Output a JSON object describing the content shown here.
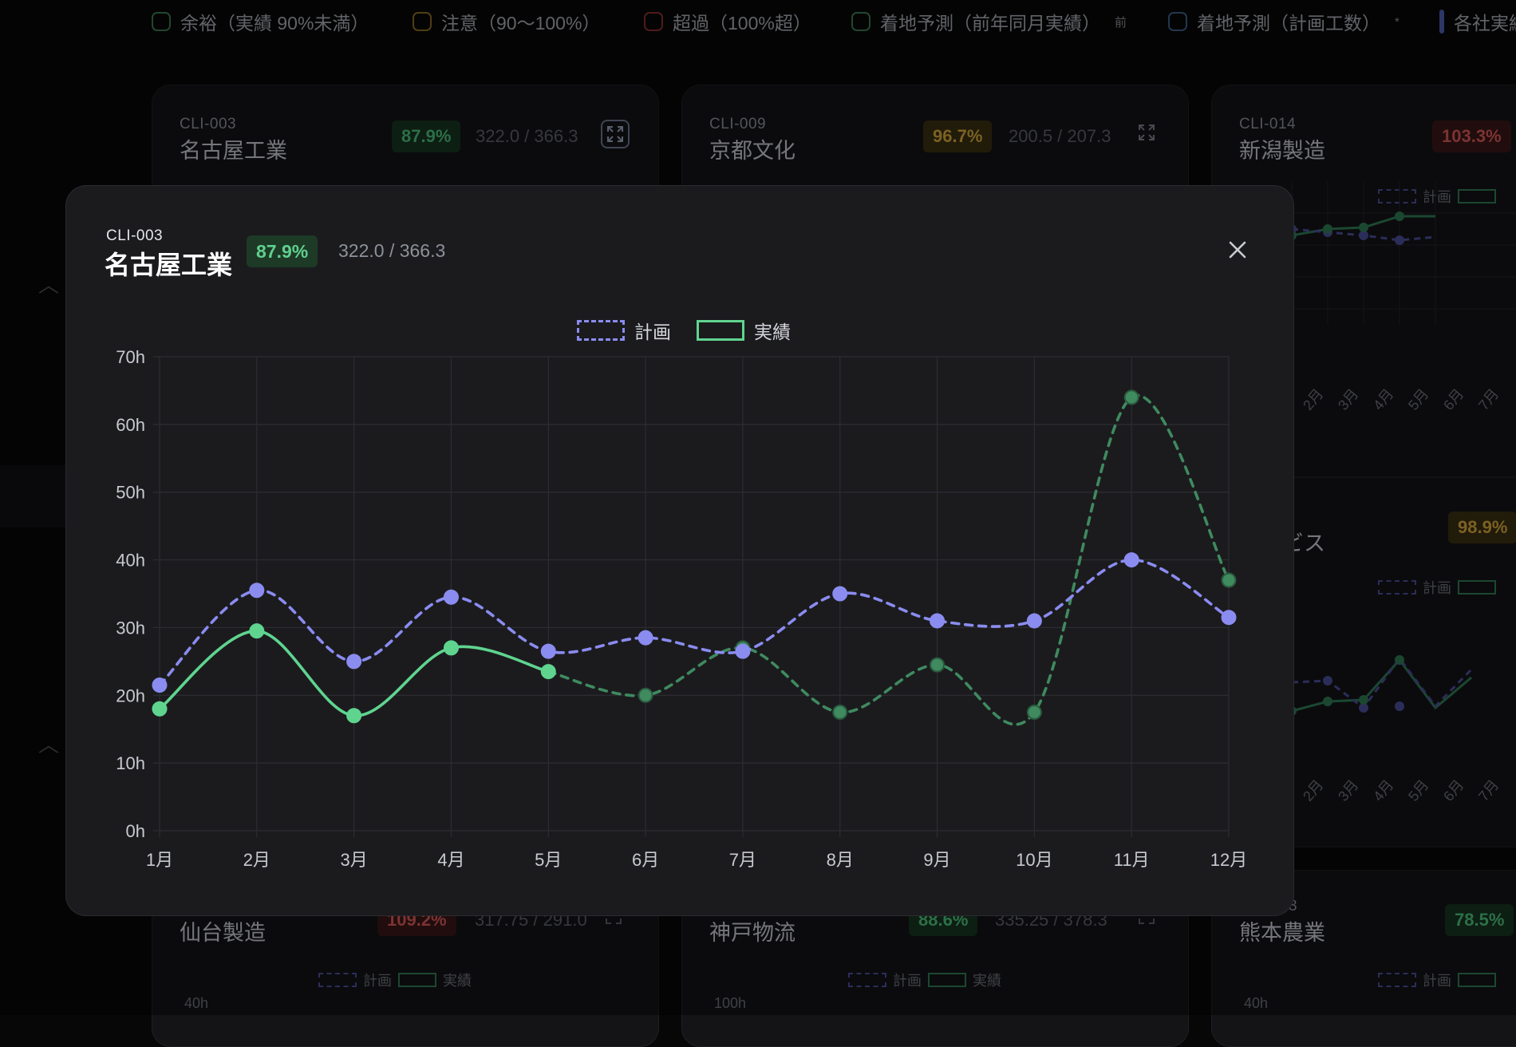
{
  "legend_bar": [
    {
      "label": "余裕（実績 90%未満）",
      "color": "#3b7a54",
      "note": ""
    },
    {
      "label": "注意（90〜100%）",
      "color": "#8a6a22",
      "note": ""
    },
    {
      "label": "超過（100%超）",
      "color": "#8a2f2f",
      "note": ""
    },
    {
      "label": "着地予測（前年同月実績）",
      "color": "#3b7a54",
      "note": "前"
    },
    {
      "label": "着地予測（計画工数）",
      "color": "#3d5f8a",
      "note": "*"
    },
    {
      "label": "各社実績",
      "color": "#4d5fb0",
      "note": ""
    }
  ],
  "cards": [
    {
      "id": "CLI-003",
      "name": "名古屋工業",
      "pct": "87.9%",
      "ratio": "322.0 / 366.3",
      "status": "green"
    },
    {
      "id": "CLI-009",
      "name": "京都文化",
      "pct": "96.7%",
      "ratio": "200.5 / 207.3",
      "status": "amber"
    },
    {
      "id": "CLI-014",
      "name": "新潟製造",
      "pct": "103.3%",
      "ratio": "",
      "status": "red"
    },
    {
      "id": "4",
      "name": "サービス",
      "pct": "98.9%",
      "ratio": "",
      "status": "amber"
    },
    {
      "id": "",
      "name": "仙台製造",
      "pct": "109.2%",
      "ratio": "317.75 / 291.0",
      "status": "red"
    },
    {
      "id": "",
      "name": "神戸物流",
      "pct": "88.6%",
      "ratio": "335.25 / 378.3",
      "status": "green"
    },
    {
      "id": "3",
      "name": "熊本農業",
      "pct": "78.5%",
      "ratio": "",
      "status": "green"
    }
  ],
  "mini": {
    "plan_label": "計画",
    "actual_label": "実績",
    "months": [
      "2月",
      "3月",
      "4月",
      "5月",
      "6月",
      "7月"
    ],
    "ylabel_a": "40h",
    "ylabel_b": "100h"
  },
  "modal": {
    "id": "CLI-003",
    "name": "名古屋工業",
    "pct": "87.9%",
    "ratio": "322.0 / 366.3"
  },
  "chart_data": {
    "type": "line",
    "categories": [
      "1月",
      "2月",
      "3月",
      "4月",
      "5月",
      "6月",
      "7月",
      "8月",
      "9月",
      "10月",
      "11月",
      "12月"
    ],
    "ylim": [
      0,
      70
    ],
    "yticks": [
      "0h",
      "10h",
      "20h",
      "30h",
      "40h",
      "50h",
      "60h",
      "70h"
    ],
    "grid": true,
    "legend": "top-center",
    "series": [
      {
        "name": "計画",
        "color": "#8a8cf0",
        "style": "dashed",
        "values": [
          21.5,
          35.5,
          25,
          34.5,
          26.5,
          28.5,
          26.5,
          35,
          31,
          31,
          40,
          31.5
        ]
      },
      {
        "name": "実績",
        "color": "#5fd48f",
        "style": "solid",
        "values": [
          18,
          29.5,
          17,
          27,
          23.5,
          null,
          null,
          null,
          null,
          null,
          null,
          null
        ]
      },
      {
        "name": "",
        "color": "#3f8a5f",
        "style": "dashed",
        "values": [
          null,
          null,
          null,
          null,
          23.5,
          20,
          27,
          17.5,
          24.5,
          17.5,
          64,
          37
        ]
      }
    ]
  }
}
